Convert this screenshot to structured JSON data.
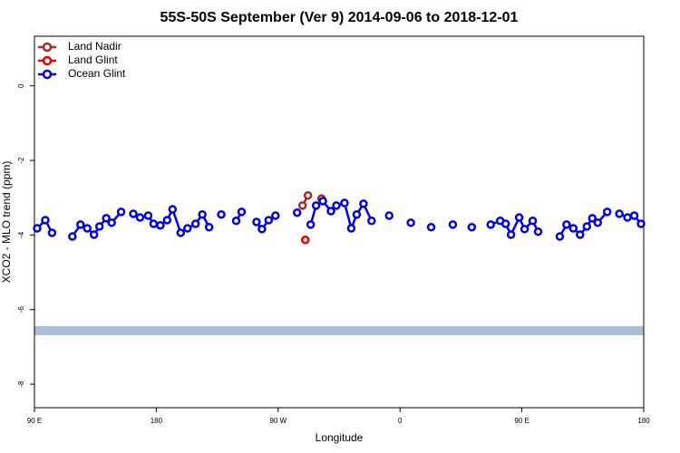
{
  "chart_data": {
    "type": "scatter",
    "title": "55S-50S September (Ver 9)   2014-09-06 to 2018-12-01",
    "x_label": "Longitude",
    "y_label": "XCO2 - MLO trend (ppm)",
    "xlim": [
      90,
      540
    ],
    "ylim": [
      -8.63,
      1.33
    ],
    "xticks": [
      {
        "value": 90,
        "label": "90 E"
      },
      {
        "value": 180,
        "label": "180"
      },
      {
        "value": 270,
        "label": "90 W"
      },
      {
        "value": 360,
        "label": "0"
      },
      {
        "value": 450,
        "label": "90 E"
      },
      {
        "value": 540,
        "label": "180"
      }
    ],
    "yticks": [
      0,
      -2,
      -4,
      -6,
      -8
    ],
    "legend": "top-left",
    "series": [
      {
        "name": "Land Nadir",
        "color": "#a52a2a",
        "x": [
          288,
          292,
          302
        ],
        "values": [
          -3.21,
          -2.94,
          -3.02
        ]
      },
      {
        "name": "Land Glint",
        "color": "#ee0000",
        "x": [
          290
        ],
        "values": [
          -4.13
        ]
      },
      {
        "name": "Ocean Glint",
        "color": "#0000ee",
        "x": [
          92,
          98,
          103,
          118,
          124,
          129,
          134,
          138,
          143,
          147,
          154,
          163,
          168,
          174,
          178,
          183,
          188,
          192,
          198,
          203,
          209,
          214,
          219,
          228,
          239,
          243,
          254,
          258,
          263,
          268,
          284,
          294,
          298,
          303,
          309,
          313,
          319,
          324,
          328,
          333,
          339,
          352,
          368,
          383,
          399,
          413,
          427,
          434,
          438,
          442,
          448,
          452,
          458,
          462,
          478,
          483,
          488,
          493,
          498,
          502,
          506,
          513,
          522,
          528,
          533,
          538
        ],
        "values": [
          -3.82,
          -3.6,
          -3.94,
          -4.04,
          -3.72,
          -3.82,
          -3.99,
          -3.77,
          -3.55,
          -3.67,
          -3.38,
          -3.43,
          -3.53,
          -3.48,
          -3.7,
          -3.74,
          -3.6,
          -3.31,
          -3.94,
          -3.82,
          -3.7,
          -3.45,
          -3.79,
          -3.45,
          -3.62,
          -3.38,
          -3.65,
          -3.84,
          -3.6,
          -3.48,
          -3.4,
          -3.72,
          -3.21,
          -3.09,
          -3.36,
          -3.21,
          -3.14,
          -3.82,
          -3.45,
          -3.16,
          -3.62,
          -3.48,
          -3.67,
          -3.79,
          -3.72,
          -3.79,
          -3.72,
          -3.62,
          -3.7,
          -3.99,
          -3.53,
          -3.84,
          -3.62,
          -3.91,
          -4.04,
          -3.72,
          -3.82,
          -3.99,
          -3.77,
          -3.55,
          -3.67,
          -3.38,
          -3.43,
          -3.53,
          -3.48,
          -3.7
        ]
      }
    ]
  }
}
